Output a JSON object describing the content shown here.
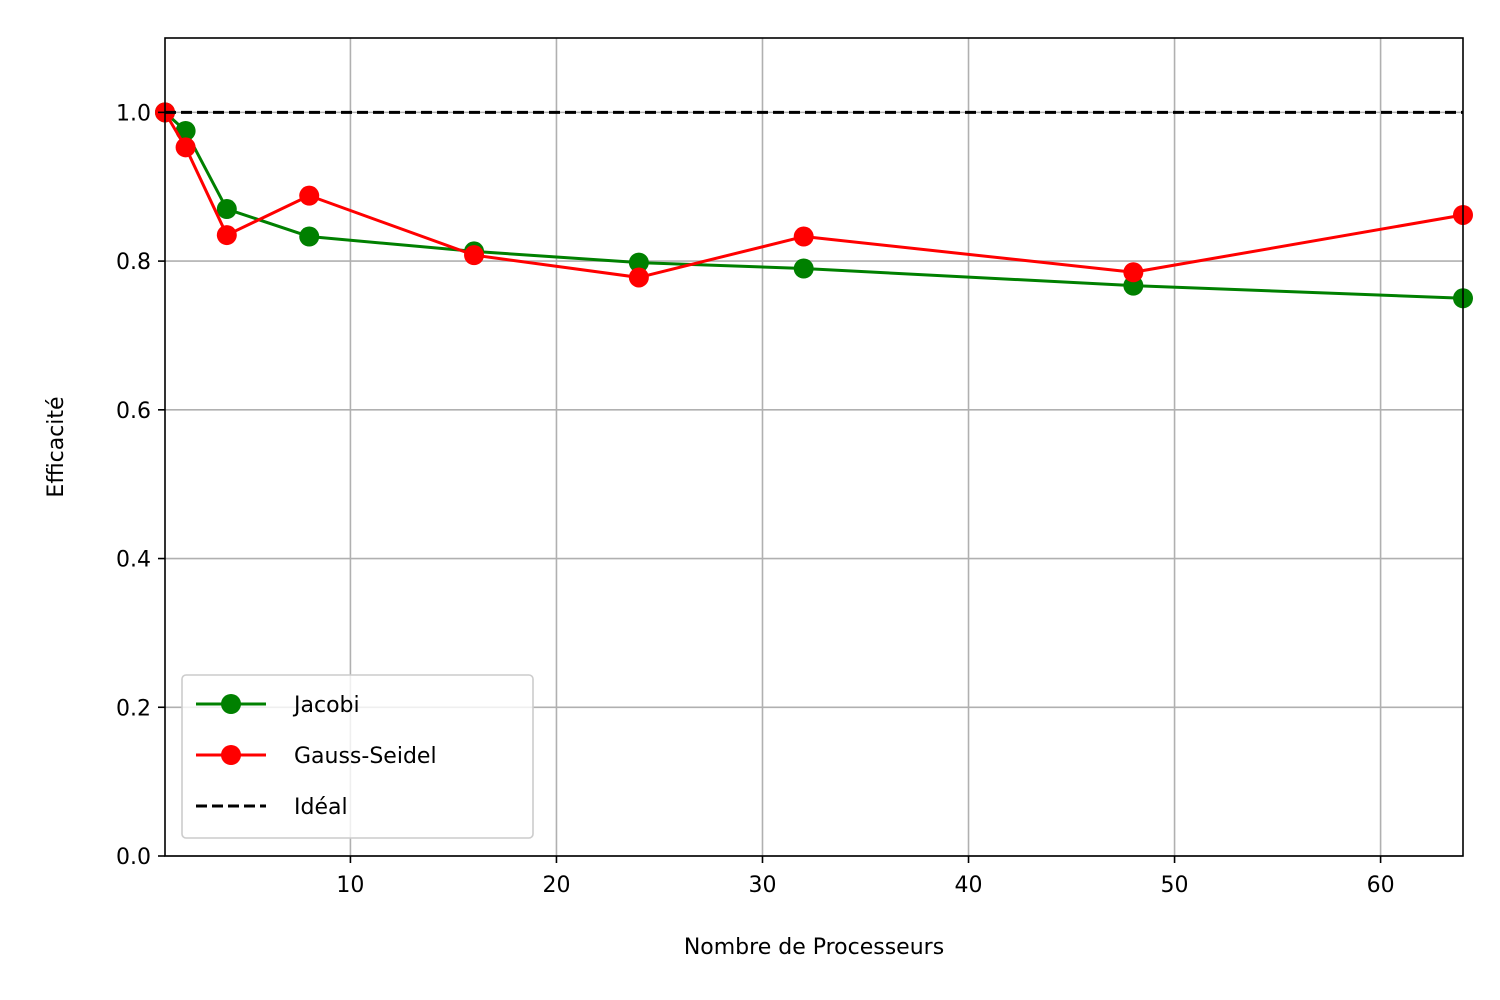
{
  "chart_data": {
    "type": "line",
    "xlabel": "Nombre de Processeurs",
    "ylabel": "Efficacité",
    "xlim": [
      1,
      64
    ],
    "ylim": [
      0.0,
      1.1
    ],
    "xticks": [
      10,
      20,
      30,
      40,
      50,
      60
    ],
    "yticks": [
      0.0,
      0.2,
      0.4,
      0.6,
      0.8,
      1.0
    ],
    "xtick_labels": [
      "10",
      "20",
      "30",
      "40",
      "50",
      "60"
    ],
    "ytick_labels": [
      "0.0",
      "0.2",
      "0.4",
      "0.6",
      "0.8",
      "1.0"
    ],
    "grid": true,
    "legend_position": "lower-left",
    "series": [
      {
        "name": "Jacobi",
        "color": "#008000",
        "marker": "circle",
        "linestyle": "solid",
        "x": [
          1,
          2,
          4,
          8,
          16,
          24,
          32,
          48,
          64
        ],
        "y": [
          1.0,
          0.975,
          0.87,
          0.833,
          0.813,
          0.798,
          0.79,
          0.767,
          0.75
        ]
      },
      {
        "name": "Gauss-Seidel",
        "color": "#ff0000",
        "marker": "circle",
        "linestyle": "solid",
        "x": [
          1,
          2,
          4,
          8,
          16,
          24,
          32,
          48,
          64
        ],
        "y": [
          1.0,
          0.953,
          0.835,
          0.888,
          0.808,
          0.778,
          0.833,
          0.785,
          0.862
        ]
      },
      {
        "name": "Idéal",
        "color": "#000000",
        "marker": "none",
        "linestyle": "dashed",
        "x": [
          1,
          64
        ],
        "y": [
          1.0,
          1.0
        ]
      }
    ]
  }
}
